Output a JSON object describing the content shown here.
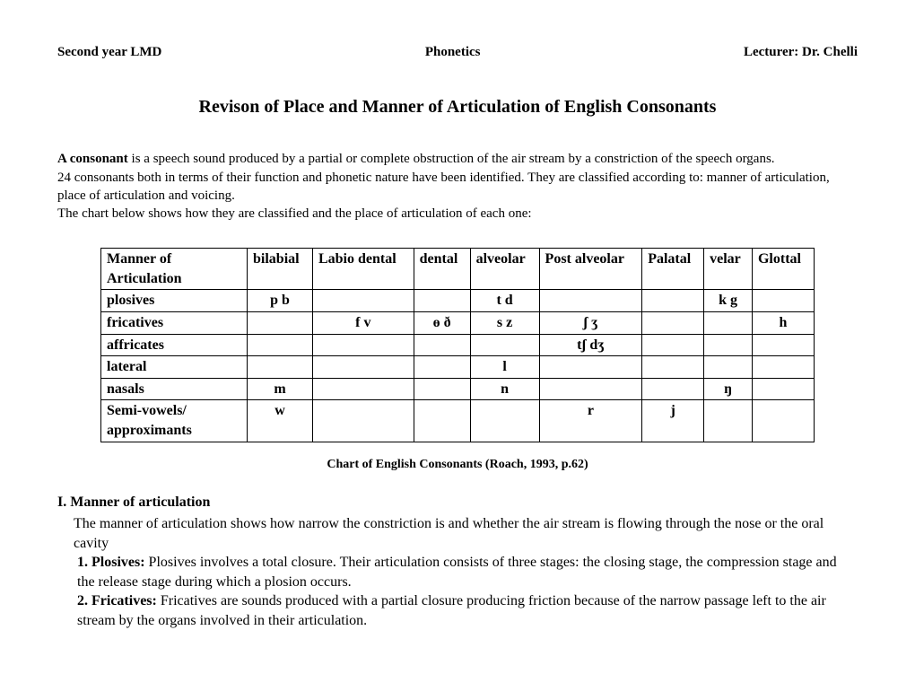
{
  "header": {
    "left": "Second year LMD",
    "center": "Phonetics",
    "right": "Lecturer: Dr. Chelli"
  },
  "title": "Revison of Place and Manner of Articulation  of English Consonants",
  "intro": {
    "bold": "A consonant",
    "line1": " is a speech sound produced by a partial or complete obstruction of the air stream by a constriction of the speech organs.",
    "line2": "24 consonants both in terms of their function  and phonetic nature  have been identified. They are classified according to: manner of articulation, place of articulation and voicing.",
    "line3": "The chart below shows how they are classified and the place of articulation of each one:"
  },
  "chart": {
    "headers": [
      "Manner of Articulation",
      "bilabial",
      "Labio dental",
      "dental",
      "alveolar",
      "Post alveolar",
      "Palatal",
      "velar",
      "Glottal"
    ],
    "rows": [
      {
        "label": "plosives",
        "cells": [
          "p   b",
          "",
          "",
          "t d",
          "",
          "",
          "k g",
          ""
        ]
      },
      {
        "label": "fricatives",
        "cells": [
          "",
          "f v",
          "ɵ ð",
          "s z",
          "ʃ   ʒ",
          "",
          "",
          "h"
        ]
      },
      {
        "label": "affricates",
        "cells": [
          "",
          "",
          "",
          "",
          "tʃ  dʒ",
          "",
          "",
          ""
        ]
      },
      {
        "label": "lateral",
        "cells": [
          "",
          "",
          "",
          "l",
          "",
          "",
          "",
          ""
        ]
      },
      {
        "label": "nasals",
        "cells": [
          "m",
          "",
          "",
          "n",
          "",
          "",
          "ŋ",
          ""
        ]
      },
      {
        "label": "Semi-vowels/ approximants",
        "cells": [
          "w",
          "",
          "",
          "",
          "r",
          "j",
          "",
          ""
        ]
      }
    ]
  },
  "caption": "Chart of English Consonants (Roach, 1993, p.62)",
  "section": {
    "head": "I. Manner of articulation",
    "para": "The manner of articulation shows how narrow the constriction  is and whether the air stream is flowing through the nose or the oral cavity",
    "items": [
      {
        "num": "1.",
        "term": "Plosives:",
        "text": " Plosives involves a total closure. Their articulation consists of three stages: the closing stage, the compression stage and the release stage during which a plosion occurs."
      },
      {
        "num": "2.",
        "term": "Fricatives:",
        "text": " Fricatives are sounds produced with a partial closure producing friction because of the narrow passage left to the air stream by the organs involved in their articulation."
      }
    ]
  }
}
